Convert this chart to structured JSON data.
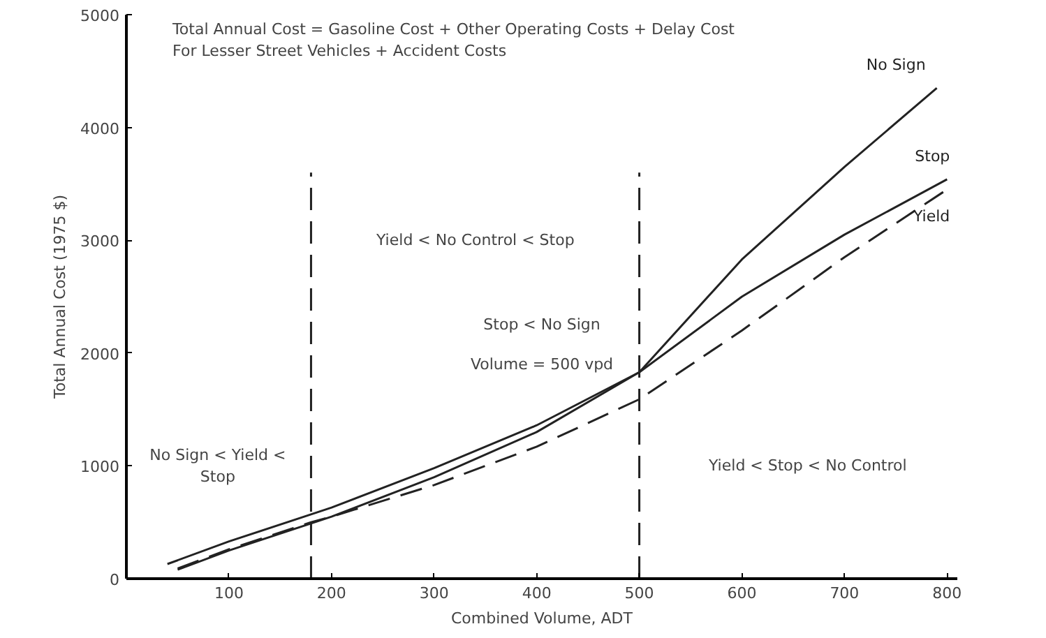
{
  "chart_data": {
    "type": "line",
    "title": "Total Annual Cost = Gasoline Cost + Other Operating Costs + Delay Cost\nFor Lesser Street Vehicles + Accident Costs",
    "xlabel": "Combined Volume, ADT",
    "ylabel": "Total Annual Cost (1975 $)",
    "xlim": [
      0,
      810
    ],
    "ylim": [
      0,
      5000
    ],
    "xticks": [
      100,
      200,
      300,
      400,
      500,
      600,
      700,
      800
    ],
    "yticks": [
      0,
      1000,
      2000,
      3000,
      4000,
      5000
    ],
    "grid": false,
    "marker": "none",
    "series": [
      {
        "name": "No Sign",
        "color": "#222222",
        "line_style": "solid",
        "x": [
          50,
          100,
          180,
          200,
          300,
          400,
          500,
          600,
          700,
          790
        ],
        "values": [
          80,
          250,
          490,
          550,
          900,
          1300,
          1830,
          2830,
          3650,
          4350
        ]
      },
      {
        "name": "Stop",
        "color": "#222222",
        "line_style": "solid",
        "x": [
          40,
          100,
          180,
          200,
          300,
          400,
          500,
          600,
          700,
          800
        ],
        "values": [
          130,
          330,
          570,
          630,
          980,
          1360,
          1830,
          2500,
          3050,
          3540
        ]
      },
      {
        "name": "Yield",
        "color": "#222222",
        "line_style": "dashed",
        "x": [
          50,
          100,
          180,
          200,
          300,
          400,
          500,
          600,
          700,
          800
        ],
        "values": [
          90,
          260,
          500,
          550,
          830,
          1170,
          1590,
          2200,
          2850,
          3450
        ]
      }
    ],
    "ref_lines": [
      {
        "axis": "x",
        "value": 180,
        "color": "#222222",
        "line_style": "dashed"
      },
      {
        "axis": "x",
        "value": 500,
        "color": "#222222",
        "line_style": "dashed"
      }
    ],
    "annotations": [
      "Yield < No Control < Stop",
      "Stop < No Sign",
      "Volume = 500 vpd",
      "No Sign < Yield <\nStop",
      "Yield < Stop < No Control"
    ]
  }
}
